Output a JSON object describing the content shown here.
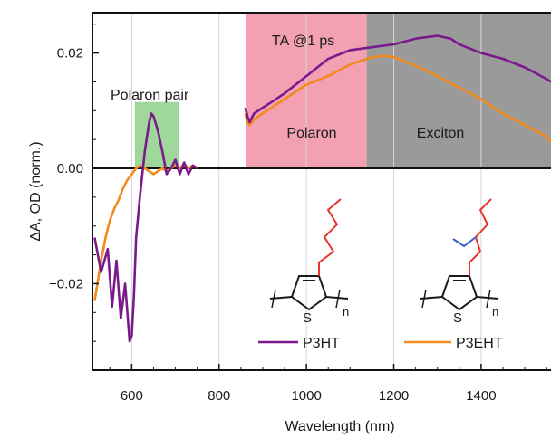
{
  "chart_data": {
    "type": "line",
    "xlabel": "Wavelength (nm)",
    "ylabel": "ΔA, OD (norm.)",
    "xlim": [
      510,
      1560
    ],
    "ylim": [
      -0.035,
      0.027
    ],
    "x_ticks": [
      600,
      800,
      1000,
      1200,
      1400
    ],
    "x_tick_labels": [
      "600",
      "800",
      "1000",
      "1200",
      "1400"
    ],
    "y_ticks": [
      -0.02,
      0.0,
      0.02
    ],
    "y_tick_labels": [
      "−0.02",
      "0.00",
      "0.02"
    ],
    "grid": "vertical",
    "colors": {
      "p3ht": "#7b1a8c",
      "p3eht": "#f28a1e",
      "polaron_pair_region": "#9fd89a",
      "polaron_region": "#f2a0b2",
      "exciton_region": "#9a9a9a"
    },
    "annotations": {
      "title_text": "TA @1 ps",
      "polaron_pair": "Polaron pair",
      "polaron": "Polaron",
      "exciton": "Exciton"
    },
    "regions": [
      {
        "name": "Polaron pair",
        "x": [
          607,
          708
        ],
        "y": [
          0.0,
          0.0115
        ]
      },
      {
        "name": "Polaron",
        "x": [
          862,
          1138
        ]
      },
      {
        "name": "Exciton",
        "x": [
          1138,
          1560
        ]
      }
    ],
    "structures": {
      "subscript": "n",
      "sulfur": "S"
    },
    "series": [
      {
        "name": "P3HT",
        "segments": [
          {
            "x": [
              515,
              530,
              545,
              555,
              565,
              575,
              585,
              595,
              600,
              605,
              610,
              620,
              630,
              640,
              645,
              650,
              660,
              670,
              680,
              690,
              700,
              710,
              720,
              730,
              740,
              750
            ],
            "y": [
              -0.012,
              -0.018,
              -0.014,
              -0.024,
              -0.016,
              -0.026,
              -0.02,
              -0.03,
              -0.029,
              -0.022,
              -0.012,
              -0.004,
              0.003,
              0.008,
              0.0095,
              0.009,
              0.0065,
              0.003,
              -0.001,
              0.0,
              0.0015,
              -0.001,
              0.001,
              -0.001,
              0.0005,
              0.0
            ]
          },
          {
            "x": [
              860,
              865,
              870,
              880,
              900,
              920,
              950,
              1000,
              1050,
              1100,
              1150,
              1200,
              1250,
              1300,
              1330,
              1350,
              1400,
              1450,
              1500,
              1550,
              1560
            ],
            "y": [
              0.0105,
              0.009,
              0.008,
              0.0095,
              0.0105,
              0.0115,
              0.013,
              0.016,
              0.019,
              0.0205,
              0.021,
              0.0215,
              0.0225,
              0.023,
              0.0225,
              0.0215,
              0.02,
              0.019,
              0.0175,
              0.0155,
              0.015
            ]
          }
        ]
      },
      {
        "name": "P3EHT",
        "segments": [
          {
            "x": [
              515,
              530,
              540,
              550,
              560,
              570,
              580,
              590,
              600,
              610,
              620,
              630,
              640,
              650,
              660,
              670,
              680,
              690,
              700,
              710,
              720,
              730,
              740,
              750
            ],
            "y": [
              -0.023,
              -0.016,
              -0.012,
              -0.009,
              -0.007,
              -0.0055,
              -0.0035,
              -0.002,
              -0.001,
              0.0,
              0.0005,
              0.0,
              -0.0005,
              -0.001,
              -0.0005,
              0.0,
              -0.0005,
              0.0,
              0.0005,
              0.0,
              0.0008,
              0.0,
              0.0005,
              0.0
            ]
          },
          {
            "x": [
              860,
              865,
              870,
              880,
              900,
              950,
              1000,
              1050,
              1100,
              1150,
              1180,
              1200,
              1250,
              1300,
              1350,
              1400,
              1450,
              1500,
              1550,
              1560
            ],
            "y": [
              0.0095,
              0.008,
              0.0075,
              0.0085,
              0.0095,
              0.012,
              0.0145,
              0.016,
              0.018,
              0.0193,
              0.0195,
              0.0193,
              0.0178,
              0.016,
              0.014,
              0.012,
              0.0095,
              0.0075,
              0.0055,
              0.0045
            ]
          }
        ]
      }
    ]
  }
}
